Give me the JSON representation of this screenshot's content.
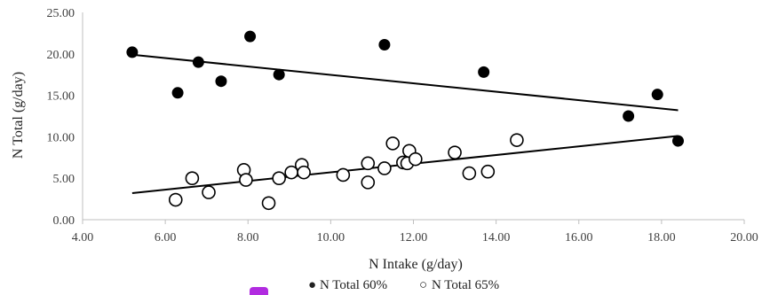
{
  "chart_data": {
    "type": "scatter",
    "xlabel": "N Intake  (g/day)",
    "ylabel": "N Total  (g/day)",
    "xlim": [
      4,
      20
    ],
    "ylim": [
      0,
      25
    ],
    "x_ticks": [
      "4.00",
      "6.00",
      "8.00",
      "10.00",
      "12.00",
      "14.00",
      "16.00",
      "18.00",
      "20.00"
    ],
    "y_ticks": [
      "0.00",
      "5.00",
      "10.00",
      "15.00",
      "20.00",
      "25.00"
    ],
    "grid": false,
    "legend_position": "bottom",
    "series": [
      {
        "name": "N Total 60%",
        "marker": "filled-circle",
        "color": "#000000",
        "points": [
          [
            5.2,
            20.2
          ],
          [
            6.3,
            15.3
          ],
          [
            6.8,
            19.0
          ],
          [
            7.35,
            16.7
          ],
          [
            8.05,
            22.1
          ],
          [
            8.75,
            17.5
          ],
          [
            11.3,
            21.1
          ],
          [
            13.7,
            17.8
          ],
          [
            17.2,
            12.5
          ],
          [
            17.9,
            15.1
          ],
          [
            18.4,
            9.5
          ]
        ],
        "trendline": {
          "x": [
            5.2,
            18.4
          ],
          "y": [
            19.9,
            13.2
          ]
        }
      },
      {
        "name": "N Total 65%",
        "marker": "open-circle",
        "color": "#000000",
        "points": [
          [
            6.25,
            2.4
          ],
          [
            6.65,
            5.0
          ],
          [
            7.05,
            3.3
          ],
          [
            7.9,
            6.0
          ],
          [
            7.95,
            4.8
          ],
          [
            8.5,
            2.0
          ],
          [
            8.75,
            5.0
          ],
          [
            9.05,
            5.7
          ],
          [
            9.3,
            6.6
          ],
          [
            9.35,
            5.7
          ],
          [
            10.3,
            5.4
          ],
          [
            10.9,
            6.8
          ],
          [
            10.9,
            4.5
          ],
          [
            11.3,
            6.2
          ],
          [
            11.5,
            9.2
          ],
          [
            11.75,
            6.9
          ],
          [
            11.85,
            6.8
          ],
          [
            11.9,
            8.3
          ],
          [
            12.05,
            7.3
          ],
          [
            13.0,
            8.1
          ],
          [
            13.35,
            5.6
          ],
          [
            13.8,
            5.8
          ],
          [
            14.5,
            9.6
          ]
        ],
        "trendline": {
          "x": [
            5.2,
            18.4
          ],
          "y": [
            3.2,
            10.1
          ]
        }
      }
    ]
  },
  "legend": {
    "items": [
      {
        "marker": "●",
        "label": "N Total 60%"
      },
      {
        "marker": "○",
        "label": "N Total 65%"
      }
    ]
  },
  "colors": {
    "badge": "#b12be0",
    "axis": "#bfbfbf",
    "ink": "#000000"
  }
}
